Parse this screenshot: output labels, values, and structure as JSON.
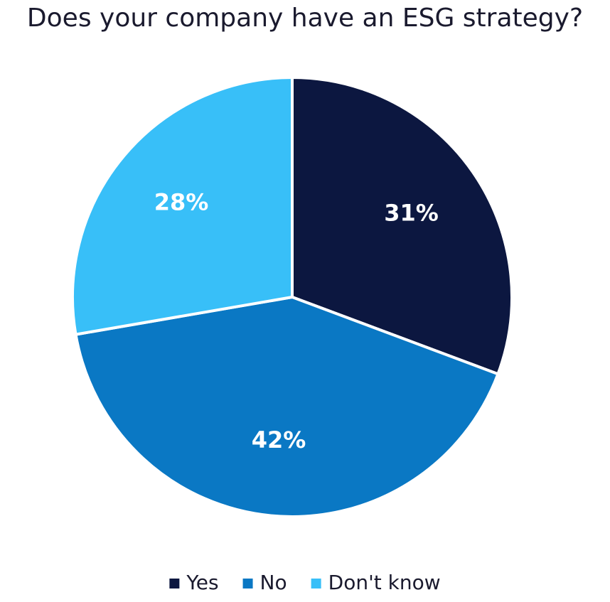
{
  "chart_data": {
    "type": "pie",
    "title": "Does your company have an ESG strategy?",
    "categories": [
      "Yes",
      "No",
      "Don't know"
    ],
    "values": [
      31,
      42,
      28
    ],
    "value_labels": [
      "31%",
      "42%",
      "28%"
    ],
    "colors": [
      "#0c1740",
      "#0a78c4",
      "#38bff8"
    ],
    "legend": "bottom"
  }
}
